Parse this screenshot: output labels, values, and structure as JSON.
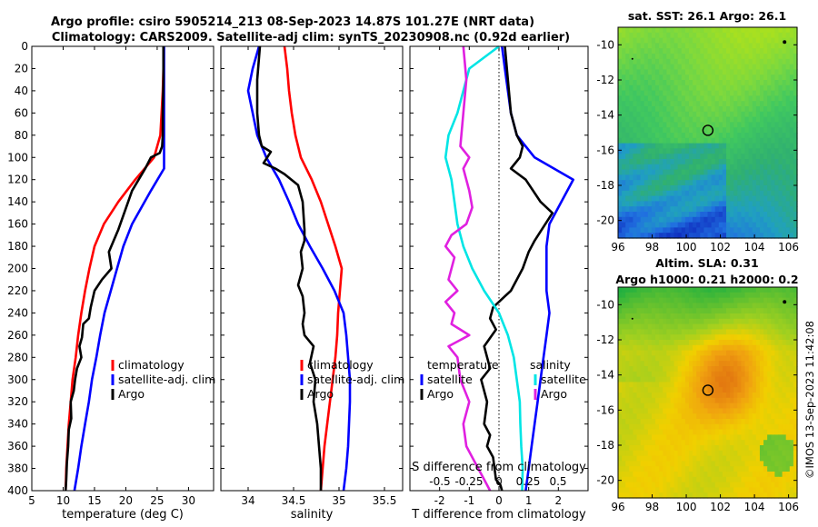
{
  "figure": {
    "title_line1": "Argo profile: csiro 5905214_213 08-Sep-2023 14.87S 101.27E (NRT data)",
    "title_line2": "Climatology: CARS2009. Satellite-adj clim: synTS_20230908.nc (0.92d earlier)",
    "copyright": "©IMOS 13-Sep-2023 11:42:08",
    "colors": {
      "climatology": "#ff0000",
      "satellite": "#0000ff",
      "argo": "#000000",
      "sat_salinity": "#00e5e5",
      "argo_salinity": "#e020e0"
    }
  },
  "chart_data": [
    {
      "type": "line",
      "id": "temperature",
      "xlabel": "temperature (deg C)",
      "xlim": [
        5,
        34
      ],
      "xticks": [
        5,
        10,
        15,
        20,
        25,
        30
      ],
      "ylim": [
        0,
        400
      ],
      "yticks": [
        0,
        20,
        40,
        60,
        80,
        100,
        120,
        140,
        160,
        180,
        200,
        220,
        240,
        260,
        280,
        300,
        320,
        340,
        360,
        380,
        400
      ],
      "legend": [
        "climatology",
        "satellite-adj. clim",
        "Argo"
      ],
      "series": [
        {
          "name": "climatology",
          "color": "#ff0000",
          "x": [
            26,
            26,
            25.9,
            25.7,
            25.5,
            24.5,
            21.5,
            18.8,
            16.5,
            15,
            14.2,
            13.5,
            12.9,
            12.4,
            12,
            11.5,
            11.2,
            10.9,
            10.7,
            10.5,
            10.4
          ],
          "y": [
            0,
            20,
            40,
            60,
            80,
            100,
            120,
            140,
            160,
            180,
            200,
            220,
            240,
            260,
            280,
            300,
            320,
            340,
            360,
            380,
            400
          ]
        },
        {
          "name": "satellite-adj. clim",
          "color": "#0000ff",
          "x": [
            26.1,
            26.1,
            26.1,
            26.1,
            26.1,
            26.1,
            26.1,
            24,
            21,
            19.6,
            18.6,
            17.6,
            16.6,
            15.9,
            15.3,
            14.6,
            14.1,
            13.5,
            12.9,
            12.4,
            11.8
          ],
          "y": [
            0,
            20,
            40,
            60,
            80,
            100,
            110,
            130,
            160,
            180,
            200,
            220,
            240,
            260,
            280,
            300,
            320,
            340,
            360,
            380,
            400
          ]
        },
        {
          "name": "Argo",
          "color": "#000000",
          "x": [
            26,
            26,
            25.9,
            25.9,
            25.8,
            25.4,
            24,
            23.1,
            21,
            18.8,
            17.3,
            17.7,
            16.2,
            15,
            14.4,
            14.1,
            13.2,
            13,
            12.6,
            12.9,
            12.2,
            11.9,
            11.7,
            11.2,
            11.3,
            10.9,
            10.8,
            10.6,
            10.5,
            10.4
          ],
          "y": [
            0,
            30,
            60,
            80,
            90,
            96,
            100,
            110,
            130,
            165,
            185,
            200,
            210,
            220,
            235,
            245,
            250,
            262,
            270,
            280,
            290,
            300,
            310,
            320,
            335,
            345,
            360,
            375,
            390,
            400
          ]
        }
      ]
    },
    {
      "type": "line",
      "id": "salinity",
      "xlabel": "salinity",
      "xlim": [
        33.7,
        35.7
      ],
      "xticks": [
        34,
        34.5,
        35,
        35.5
      ],
      "ylim": [
        0,
        400
      ],
      "legend": [
        "climatology",
        "satellite-adj. clim",
        "Argo"
      ],
      "series": [
        {
          "name": "climatology",
          "color": "#ff0000",
          "x": [
            34.4,
            34.43,
            34.45,
            34.48,
            34.52,
            34.58,
            34.7,
            34.8,
            34.88,
            34.96,
            35.03,
            35.01,
            34.99,
            34.98,
            34.96,
            34.93,
            34.9,
            34.87,
            34.84,
            34.82,
            34.8
          ],
          "y": [
            0,
            20,
            40,
            60,
            80,
            100,
            120,
            140,
            160,
            180,
            200,
            220,
            240,
            260,
            280,
            300,
            320,
            340,
            360,
            380,
            400
          ]
        },
        {
          "name": "satellite-adj. clim",
          "color": "#0000ff",
          "x": [
            34.12,
            34.05,
            34.0,
            34.05,
            34.1,
            34.2,
            34.34,
            34.45,
            34.55,
            34.68,
            34.82,
            34.95,
            35.05,
            35.08,
            35.1,
            35.12,
            35.12,
            35.11,
            35.1,
            35.08,
            35.05
          ],
          "y": [
            0,
            20,
            40,
            60,
            80,
            100,
            120,
            140,
            160,
            180,
            200,
            220,
            240,
            260,
            280,
            300,
            320,
            340,
            360,
            380,
            400
          ]
        },
        {
          "name": "Argo",
          "color": "#000000",
          "x": [
            34.13,
            34.1,
            34.1,
            34.12,
            34.15,
            34.25,
            34.17,
            34.3,
            34.4,
            34.55,
            34.6,
            34.62,
            34.62,
            34.58,
            34.6,
            34.55,
            34.6,
            34.62,
            34.6,
            34.62,
            34.72,
            34.68,
            34.74,
            34.72,
            34.76,
            34.78,
            34.8,
            34.8
          ],
          "y": [
            0,
            30,
            60,
            80,
            90,
            95,
            105,
            110,
            115,
            125,
            140,
            165,
            175,
            185,
            200,
            215,
            225,
            240,
            250,
            260,
            270,
            285,
            300,
            320,
            340,
            360,
            380,
            400
          ]
        }
      ]
    },
    {
      "type": "line",
      "id": "difference",
      "xlabel": "T difference from climatology",
      "xlabel_top": "S difference from climatology",
      "xlim": [
        -3,
        3
      ],
      "xticks": [
        -2,
        -1,
        0,
        1,
        2
      ],
      "xticks_top_labels": [
        "-0.5",
        "-0.25",
        "0",
        "0.25",
        "0.5"
      ],
      "ylim": [
        0,
        400
      ],
      "legend_left": {
        "header": "temperature",
        "items": [
          "satellite",
          "Argo"
        ]
      },
      "legend_right": {
        "header": "salinity",
        "items": [
          "satellite",
          "Argo"
        ]
      },
      "series": [
        {
          "name": "temperature satellite",
          "color": "#0000ff",
          "x": [
            0.1,
            0.2,
            0.3,
            0.4,
            0.6,
            1.2,
            2.5,
            2.1,
            1.7,
            1.6,
            1.6,
            1.6,
            1.7,
            1.6,
            1.5,
            1.4,
            1.3,
            1.2,
            1.1,
            1.0,
            0.9
          ],
          "y": [
            0,
            20,
            40,
            60,
            80,
            100,
            120,
            140,
            160,
            180,
            200,
            220,
            240,
            260,
            280,
            300,
            320,
            340,
            360,
            380,
            400
          ]
        },
        {
          "name": "temperature Argo",
          "color": "#000000",
          "x": [
            0.2,
            0.3,
            0.4,
            0.6,
            0.8,
            0.7,
            0.4,
            0.9,
            1.4,
            1.8,
            1.2,
            1.0,
            0.8,
            0.4,
            0.2,
            -0.2,
            -0.3,
            -0.1,
            -0.5,
            -0.3,
            -0.6,
            -0.4,
            -0.5,
            -0.3,
            -0.4,
            -0.2,
            -0.15,
            -0.1,
            0.05,
            0.1
          ],
          "y": [
            0,
            30,
            60,
            80,
            90,
            100,
            110,
            120,
            140,
            150,
            175,
            185,
            200,
            220,
            225,
            235,
            245,
            255,
            270,
            290,
            300,
            320,
            340,
            350,
            360,
            370,
            380,
            390,
            395,
            400
          ]
        },
        {
          "name": "salinity satellite",
          "color": "#00e5e5",
          "x": [
            0.0,
            -1.0,
            -1.2,
            -1.4,
            -1.7,
            -1.8,
            -1.6,
            -1.5,
            -1.4,
            -1.2,
            -0.9,
            -0.5,
            0.0,
            0.3,
            0.5,
            0.6,
            0.7,
            0.72,
            0.75,
            0.8,
            0.78
          ],
          "y": [
            0,
            20,
            40,
            60,
            80,
            100,
            120,
            140,
            160,
            180,
            200,
            220,
            240,
            260,
            280,
            300,
            320,
            340,
            360,
            380,
            400
          ]
        },
        {
          "name": "salinity Argo",
          "color": "#e020e0",
          "x": [
            -1.2,
            -1.1,
            -1.2,
            -1.3,
            -1.0,
            -1.2,
            -1.0,
            -0.9,
            -1.1,
            -1.6,
            -1.8,
            -1.5,
            -1.7,
            -1.4,
            -1.8,
            -1.5,
            -1.6,
            -1.0,
            -1.7,
            -1.4,
            -1.3,
            -1.0,
            -1.2,
            -1.1,
            -0.7,
            -0.5,
            -0.3
          ],
          "y": [
            0,
            30,
            60,
            90,
            100,
            110,
            130,
            145,
            160,
            170,
            180,
            190,
            210,
            220,
            230,
            240,
            250,
            260,
            270,
            280,
            300,
            320,
            340,
            360,
            380,
            390,
            400
          ]
        }
      ]
    },
    {
      "type": "heatmap",
      "id": "sst_map",
      "title": "sat. SST: 26.1  Argo: 26.1",
      "xlim": [
        96,
        106.5
      ],
      "ylim": [
        -21,
        -9
      ],
      "xticks": [
        96,
        98,
        100,
        102,
        104,
        106
      ],
      "yticks": [
        -10,
        -12,
        -14,
        -16,
        -18,
        -20
      ],
      "marker": {
        "lon": 101.27,
        "lat": -14.87
      },
      "colors": [
        "#a8e020",
        "#7ad840",
        "#40c860",
        "#30b070",
        "#20a0c0",
        "#2070e0",
        "#1030c0"
      ]
    },
    {
      "type": "heatmap",
      "id": "sla_map",
      "title_line1": "Altim. SLA: 0.31",
      "title_line2": "Argo h1000: 0.21  h2000: 0.2",
      "xlim": [
        96,
        106.5
      ],
      "ylim": [
        -21,
        -9
      ],
      "xticks": [
        96,
        98,
        100,
        102,
        104,
        106
      ],
      "yticks": [
        -10,
        -12,
        -14,
        -16,
        -18,
        -20
      ],
      "marker": {
        "lon": 101.27,
        "lat": -14.87
      },
      "colors": [
        "#20b040",
        "#60c030",
        "#a0d020",
        "#f0d000",
        "#f0a010",
        "#e07010"
      ]
    }
  ]
}
